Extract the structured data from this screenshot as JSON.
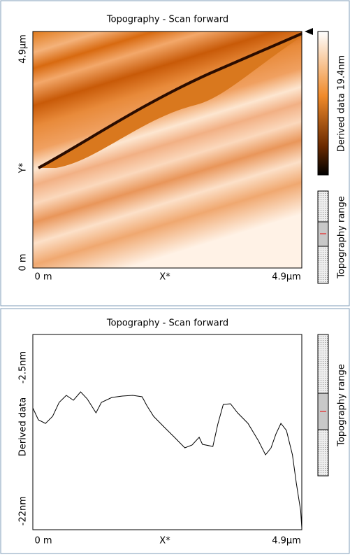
{
  "panels": [
    {
      "title": "Topography - Scan forward",
      "y_label_top": "4.9µm",
      "y_label_mid": "Y*",
      "y_label_bottom": "0 m",
      "x_label_left": "0 m",
      "x_label_mid": "X*",
      "x_label_right": "4.9µm",
      "colorbar_label": "Derived data 19.4nm",
      "range_label": "Topography range"
    },
    {
      "title": "Topography - Scan forward",
      "y_label_top": "-2.5nm",
      "y_label_mid": "Derived data",
      "y_label_bottom": "-22nm",
      "x_label_left": "0 m",
      "x_label_mid": "X*",
      "x_label_right": "4.9µm",
      "range_label": "Topography range",
      "profile": {
        "xlim": [
          0,
          4.9
        ],
        "ylim": [
          -22,
          -2.5
        ],
        "x": [
          0,
          0.1,
          0.23,
          0.36,
          0.48,
          0.61,
          0.74,
          0.87,
          0.99,
          1.15,
          1.25,
          1.44,
          1.63,
          1.82,
          1.99,
          2.08,
          2.2,
          2.39,
          2.58,
          2.77,
          2.9,
          3.03,
          3.09,
          3.28,
          3.37,
          3.47,
          3.6,
          3.73,
          3.92,
          4.11,
          4.24,
          4.34,
          4.43,
          4.52,
          4.62,
          4.73,
          4.8,
          4.88,
          4.9
        ],
        "values": [
          -9.84,
          -11.03,
          -11.38,
          -10.68,
          -9.28,
          -8.58,
          -9.07,
          -8.23,
          -8.93,
          -10.33,
          -9.28,
          -8.79,
          -8.65,
          -8.58,
          -8.72,
          -9.63,
          -10.68,
          -11.73,
          -12.77,
          -13.82,
          -13.54,
          -12.77,
          -13.47,
          -13.68,
          -11.45,
          -9.49,
          -9.42,
          -10.33,
          -11.38,
          -13.12,
          -14.52,
          -13.82,
          -12.42,
          -11.38,
          -12.08,
          -14.52,
          -17.32,
          -20.11,
          -21.86
        ]
      }
    }
  ]
}
